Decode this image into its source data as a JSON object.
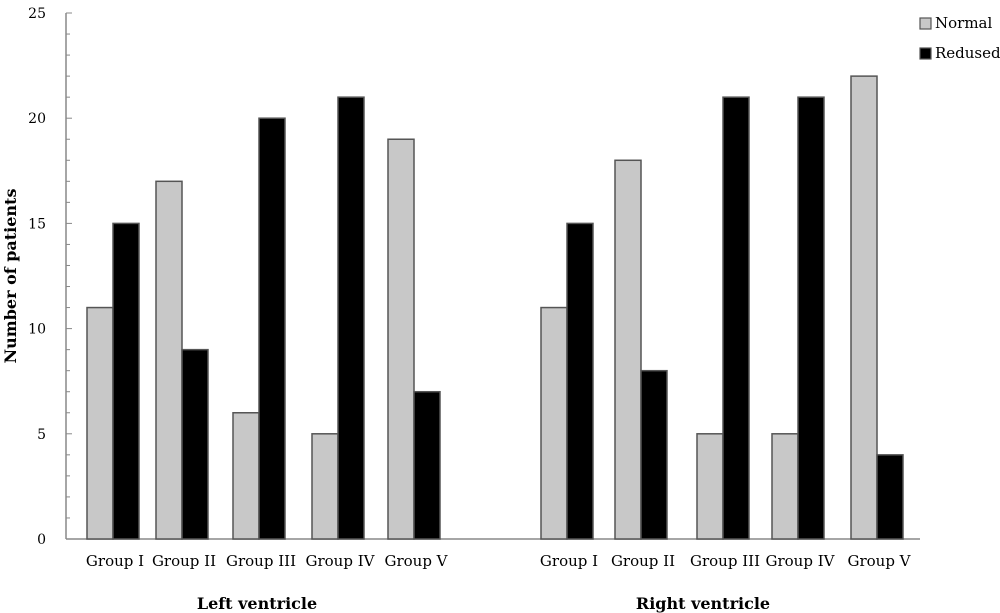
{
  "chart_data": {
    "type": "bar",
    "ylabel": "Number of patients",
    "ylim": [
      0,
      25
    ],
    "yticks": [
      0,
      5,
      10,
      15,
      20,
      25
    ],
    "grid": false,
    "legend_position": "top-right",
    "colors": {
      "Normal": "#c8c8c8",
      "Redused": "#000000",
      "bar_stroke": "#555555"
    },
    "panels": [
      {
        "label": "Left ventricle",
        "categories": [
          "Group I",
          "Group II",
          "Group III",
          "Group IV",
          "Group V"
        ],
        "series": [
          {
            "name": "Normal",
            "values": [
              11,
              17,
              6,
              5,
              19
            ]
          },
          {
            "name": "Redused",
            "values": [
              15,
              9,
              20,
              21,
              7
            ]
          }
        ]
      },
      {
        "label": "Right ventricle",
        "categories": [
          "Group I",
          "Group II",
          "Group III",
          "Group IV",
          "Group V"
        ],
        "series": [
          {
            "name": "Normal",
            "values": [
              11,
              18,
              5,
              5,
              22
            ]
          },
          {
            "name": "Redused",
            "values": [
              15,
              8,
              21,
              21,
              4
            ]
          }
        ]
      }
    ]
  }
}
